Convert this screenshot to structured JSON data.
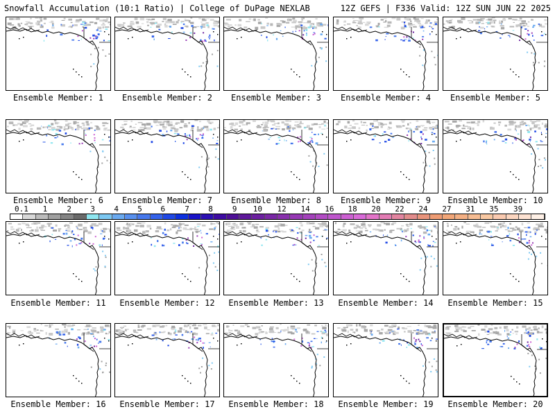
{
  "header": {
    "title": "Snowfall Accumulation (10:1 Ratio) | College of DuPage NEXLAB",
    "run_info": "12Z GEFS | F336 Valid: 12Z SUN JUN 22 2025"
  },
  "members": [
    {
      "label": "Ensemble Member: 1"
    },
    {
      "label": "Ensemble Member: 2"
    },
    {
      "label": "Ensemble Member: 3"
    },
    {
      "label": "Ensemble Member: 4"
    },
    {
      "label": "Ensemble Member: 5"
    },
    {
      "label": "Ensemble Member: 6"
    },
    {
      "label": "Ensemble Member: 7"
    },
    {
      "label": "Ensemble Member: 8"
    },
    {
      "label": "Ensemble Member: 9"
    },
    {
      "label": "Ensemble Member: 10"
    },
    {
      "label": "Ensemble Member: 11"
    },
    {
      "label": "Ensemble Member: 12"
    },
    {
      "label": "Ensemble Member: 13"
    },
    {
      "label": "Ensemble Member: 14"
    },
    {
      "label": "Ensemble Member: 15"
    },
    {
      "label": "Ensemble Member: 16"
    },
    {
      "label": "Ensemble Member: 17"
    },
    {
      "label": "Ensemble Member: 18"
    },
    {
      "label": "Ensemble Member: 19"
    },
    {
      "label": "Ensemble Member: 20"
    }
  ],
  "colorbar": {
    "labels": [
      "0.1",
      "1",
      "2",
      "3",
      "4",
      "5",
      "6",
      "7",
      "8",
      "9",
      "10",
      "12",
      "14",
      "16",
      "18",
      "20",
      "22",
      "24",
      "27",
      "31",
      "35",
      "39"
    ],
    "colors": [
      "#ffffff",
      "#d8d8d8",
      "#bcbcbc",
      "#a0a0a0",
      "#848484",
      "#6a6a6a",
      "#8ee6f0",
      "#7cc8f2",
      "#6aaaf0",
      "#5890ee",
      "#4678ec",
      "#3462ea",
      "#1f48e6",
      "#0c30e0",
      "#1a14c8",
      "#2c10b4",
      "#3e0ca2",
      "#4e1096",
      "#5e189a",
      "#6c20a0",
      "#7a28a6",
      "#8830ac",
      "#9638b4",
      "#a442bc",
      "#b24cc4",
      "#be56cc",
      "#cc60d2",
      "#d86ad8",
      "#e274c8",
      "#e27cb4",
      "#e284a0",
      "#e28c8c",
      "#e8947c",
      "#ee9c74",
      "#f2a678",
      "#f4b084",
      "#f6bc92",
      "#f8c8a2",
      "#facab0",
      "#fcd6c0",
      "#fde2d2",
      "#fef0e6"
    ]
  }
}
